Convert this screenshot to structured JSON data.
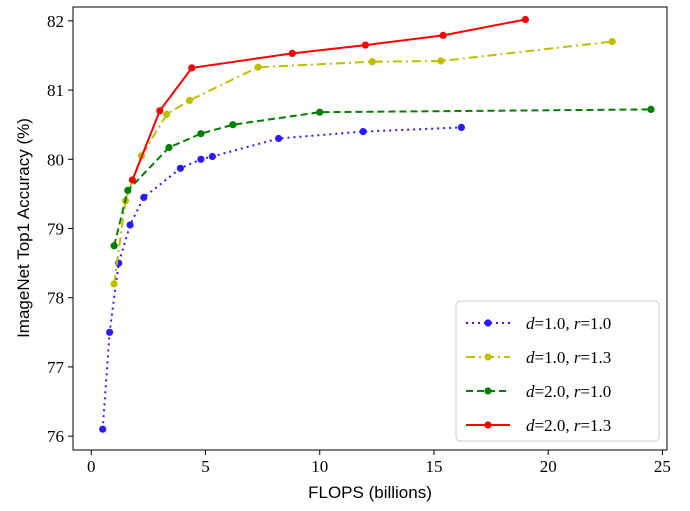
{
  "chart_data": {
    "type": "line",
    "xlabel": "FLOPS (billions)",
    "ylabel": "ImageNet Top1 Accuracy (%)",
    "xlim": [
      -0.8,
      25.2
    ],
    "ylim": [
      75.8,
      82.2
    ],
    "xticks": [
      0,
      5,
      10,
      15,
      20,
      25
    ],
    "yticks": [
      76,
      77,
      78,
      79,
      80,
      81,
      82
    ],
    "grid": false,
    "legend_position": "lower-right",
    "series": [
      {
        "name": "d=1.0, r=1.0",
        "legend": {
          "v1": "d",
          "val1": "=1.0, ",
          "v2": "r",
          "val2": "=1.0"
        },
        "color": "#2b19ff",
        "line_style": "dotted",
        "x": [
          0.5,
          0.8,
          1.2,
          1.7,
          2.3,
          3.9,
          4.8,
          5.3,
          8.2,
          11.9,
          16.2
        ],
        "y": [
          76.1,
          77.5,
          78.5,
          79.05,
          79.45,
          79.87,
          80.0,
          80.04,
          80.3,
          80.4,
          80.46
        ]
      },
      {
        "name": "d=1.0, r=1.3",
        "legend": {
          "v1": "d",
          "val1": "=1.0, ",
          "v2": "r",
          "val2": "=1.3"
        },
        "color": "#bfbf00",
        "line_style": "dashdot",
        "x": [
          1.0,
          1.5,
          2.2,
          3.3,
          4.3,
          7.3,
          12.3,
          15.3,
          22.8
        ],
        "y": [
          78.2,
          79.4,
          80.05,
          80.65,
          80.85,
          81.33,
          81.41,
          81.42,
          81.7
        ]
      },
      {
        "name": "d=2.0, r=1.0",
        "legend": {
          "v1": "d",
          "val1": "=2.0, ",
          "v2": "r",
          "val2": "=1.0"
        },
        "color": "#008000",
        "line_style": "dashed",
        "x": [
          1.0,
          1.6,
          3.4,
          4.8,
          6.2,
          10.0,
          24.5
        ],
        "y": [
          78.75,
          79.55,
          80.17,
          80.37,
          80.5,
          80.68,
          80.72
        ]
      },
      {
        "name": "d=2.0, r=1.3",
        "legend": {
          "v1": "d",
          "val1": "=2.0, ",
          "v2": "r",
          "val2": "=1.3"
        },
        "color": "#ff0000",
        "line_style": "solid",
        "x": [
          1.8,
          3.0,
          4.4,
          8.8,
          12.0,
          15.4,
          19.0
        ],
        "y": [
          79.7,
          80.7,
          81.32,
          81.53,
          81.65,
          81.79,
          82.02
        ]
      }
    ]
  }
}
